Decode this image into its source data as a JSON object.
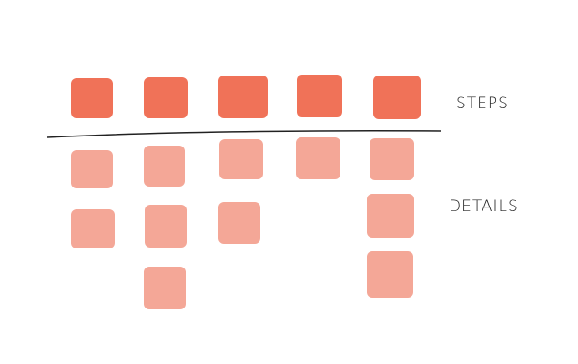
{
  "labels": {
    "steps": "STEPS",
    "details": "DETAILS"
  },
  "colors": {
    "step": "#F07258",
    "detail": "#F4A797",
    "line": "#222222"
  },
  "columns": [
    {
      "details": 2
    },
    {
      "details": 3
    },
    {
      "details": 2
    },
    {
      "details": 1
    },
    {
      "details": 3
    }
  ]
}
